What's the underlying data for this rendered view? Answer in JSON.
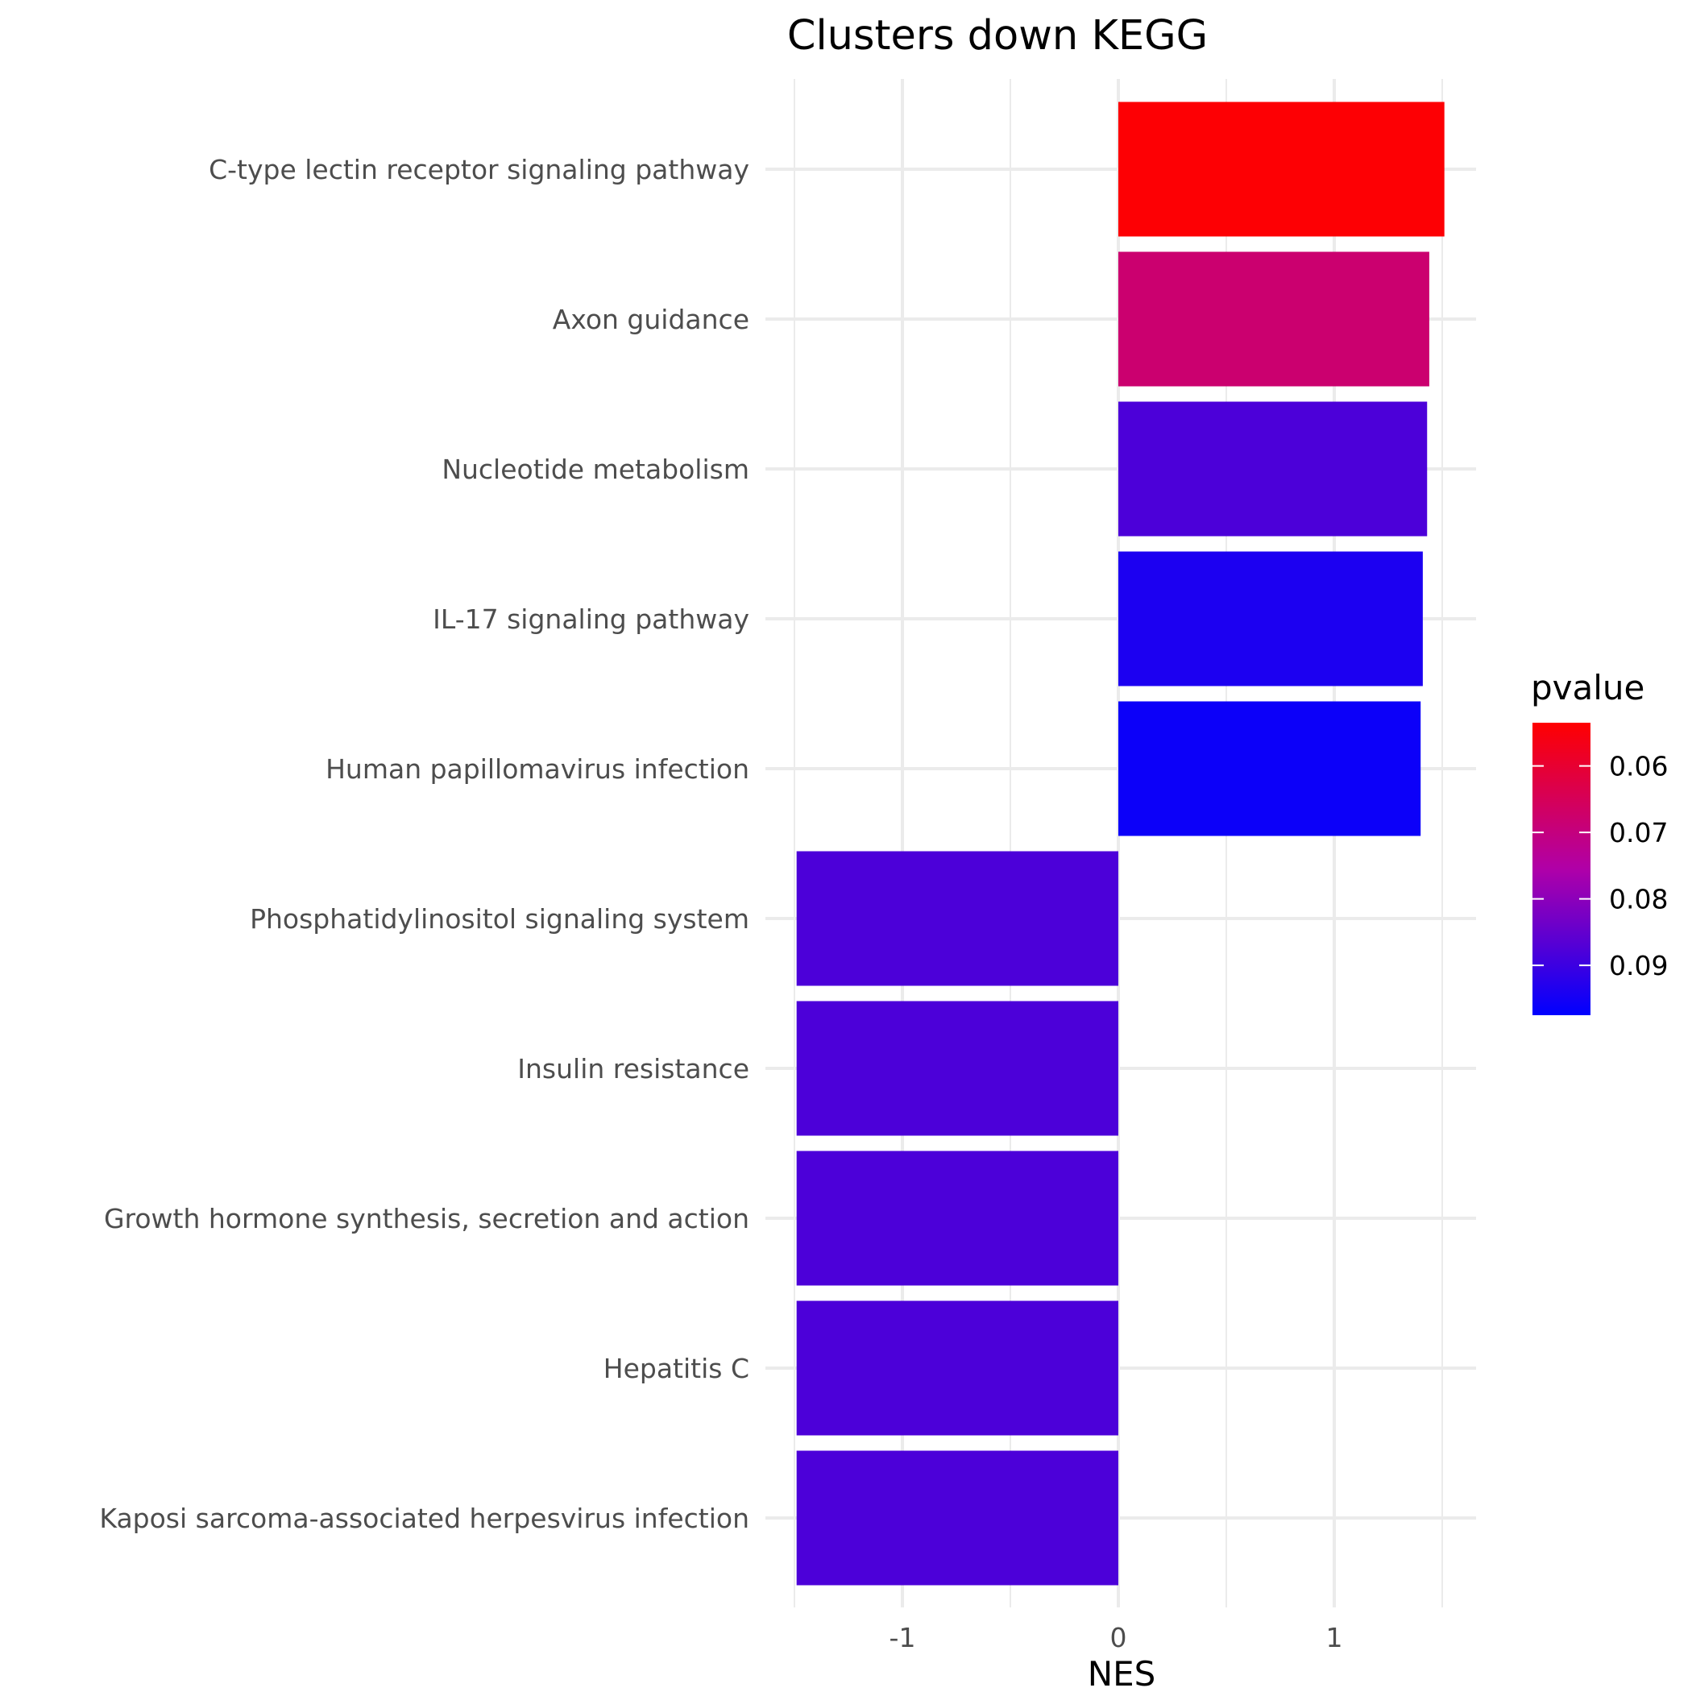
{
  "chart_data": {
    "type": "bar",
    "orientation": "horizontal",
    "title": "Clusters down KEGG",
    "xlabel": "NES",
    "ylabel": "",
    "categories": [
      "C-type lectin receptor signaling pathway",
      "Axon guidance",
      "Nucleotide metabolism",
      "IL-17 signaling pathway",
      "Human papillomavirus infection",
      "Phosphatidylinositol signaling system",
      "Insulin resistance",
      "Growth hormone synthesis, secretion and action",
      "Hepatitis C",
      "Kaposi sarcoma-associated herpesvirus infection"
    ],
    "values": [
      1.51,
      1.44,
      1.43,
      1.41,
      1.4,
      -1.49,
      -1.49,
      -1.49,
      -1.49,
      -1.49
    ],
    "pvalues": [
      0.054,
      0.068,
      0.088,
      0.094,
      0.096,
      0.088,
      0.088,
      0.088,
      0.088,
      0.088
    ],
    "xlim": [
      -1.5,
      1.6
    ],
    "xticks": [
      "-1",
      "0",
      "1"
    ],
    "xtick_values": [
      -1,
      0,
      1
    ],
    "grid": true,
    "legend": {
      "title": "pvalue",
      "position": "right",
      "ticks": [
        "0.06",
        "0.07",
        "0.08",
        "0.09"
      ],
      "tick_values": [
        0.06,
        0.07,
        0.08,
        0.09
      ],
      "range": [
        0.0535,
        0.0975
      ],
      "low_color": "#ff0000",
      "high_color": "#0000ff"
    }
  }
}
